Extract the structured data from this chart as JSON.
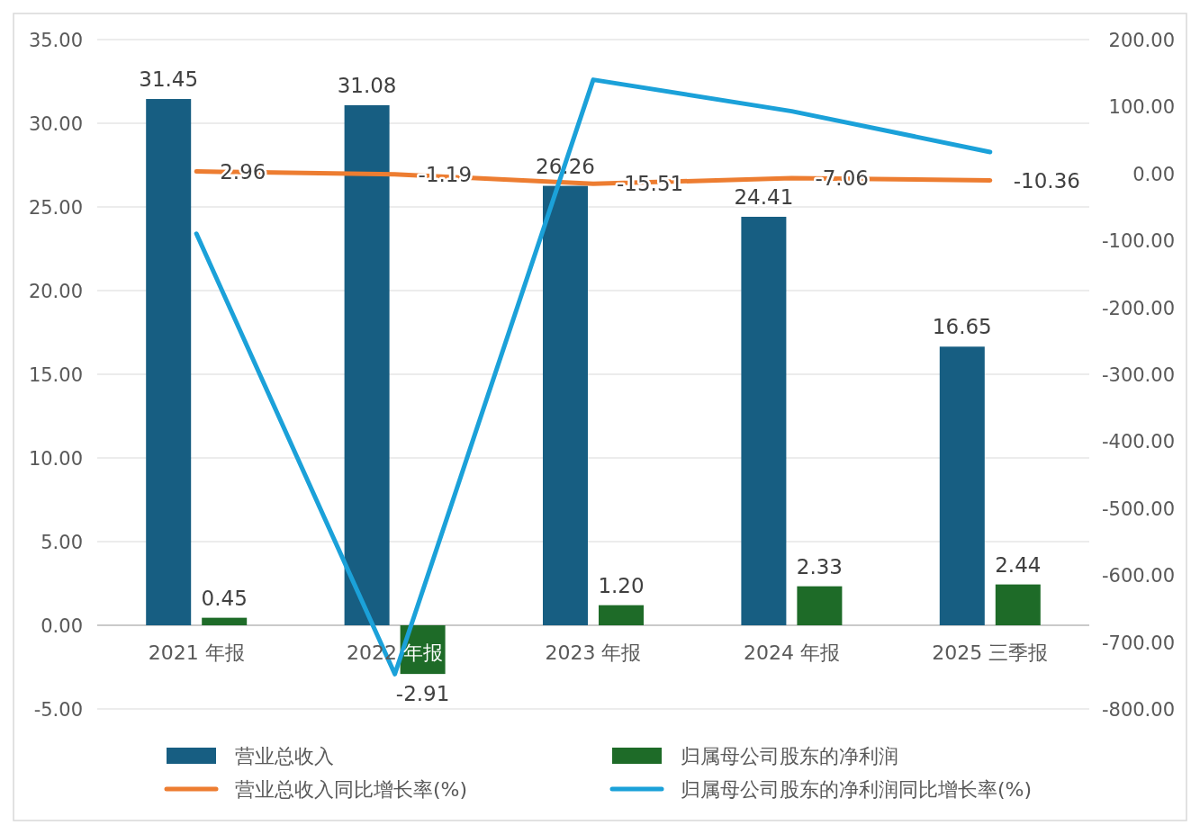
{
  "chart_data": {
    "type": "bar",
    "categories": [
      "2021 年报",
      "2022 年报",
      "2023 年报",
      "2024 年报",
      "2025 三季报"
    ],
    "ylim": [
      -5,
      35
    ],
    "yticks": [
      {
        "value": -5,
        "label": "-5.00"
      },
      {
        "value": 0,
        "label": "0.00"
      },
      {
        "value": 5,
        "label": "5.00"
      },
      {
        "value": 10,
        "label": "10.00"
      },
      {
        "value": 15,
        "label": "15.00"
      },
      {
        "value": 20,
        "label": "20.00"
      },
      {
        "value": 25,
        "label": "25.00"
      },
      {
        "value": 30,
        "label": "30.00"
      },
      {
        "value": 35,
        "label": "35.00"
      }
    ],
    "y2lim": [
      -800,
      200
    ],
    "y2ticks": [
      {
        "value": -800,
        "label": "-800.00"
      },
      {
        "value": -700,
        "label": "-700.00"
      },
      {
        "value": -600,
        "label": "-600.00"
      },
      {
        "value": -500,
        "label": "-500.00"
      },
      {
        "value": -400,
        "label": "-400.00"
      },
      {
        "value": -300,
        "label": "-300.00"
      },
      {
        "value": -200,
        "label": "-200.00"
      },
      {
        "value": -100,
        "label": "-100.00"
      },
      {
        "value": 0,
        "label": "0.00"
      },
      {
        "value": 100,
        "label": "100.00"
      },
      {
        "value": 200,
        "label": "200.00"
      }
    ],
    "grid": "y",
    "legend": "bottom",
    "series": [
      {
        "name": "营业总收入",
        "type": "bar",
        "color": "#175e82",
        "values": [
          31.45,
          31.08,
          26.26,
          24.41,
          16.65
        ],
        "value_labels": [
          "31.45",
          "31.08",
          "26.26",
          "24.41",
          "16.65"
        ]
      },
      {
        "name": "归属母公司股东的净利润",
        "type": "bar",
        "color": "#1e6b28",
        "values": [
          0.45,
          -2.91,
          1.2,
          2.33,
          2.44
        ],
        "value_labels": [
          "0.45",
          "-2.91",
          "1.20",
          "2.33",
          "2.44"
        ]
      },
      {
        "name": "营业总收入同比增长率(%)",
        "type": "line",
        "axis": "y2",
        "color": "#ed7d31",
        "values": [
          2.96,
          -1.19,
          -15.51,
          -7.06,
          -10.36
        ],
        "value_labels": [
          "2.96",
          "-1.19",
          "-15.51",
          "-7.06",
          "-10.36"
        ]
      },
      {
        "name": "归属母公司股东的净利润同比增长率(%)",
        "type": "line",
        "axis": "y2",
        "color": "#1ba1d9",
        "values": [
          -90,
          -748,
          140,
          93,
          32
        ]
      }
    ]
  }
}
